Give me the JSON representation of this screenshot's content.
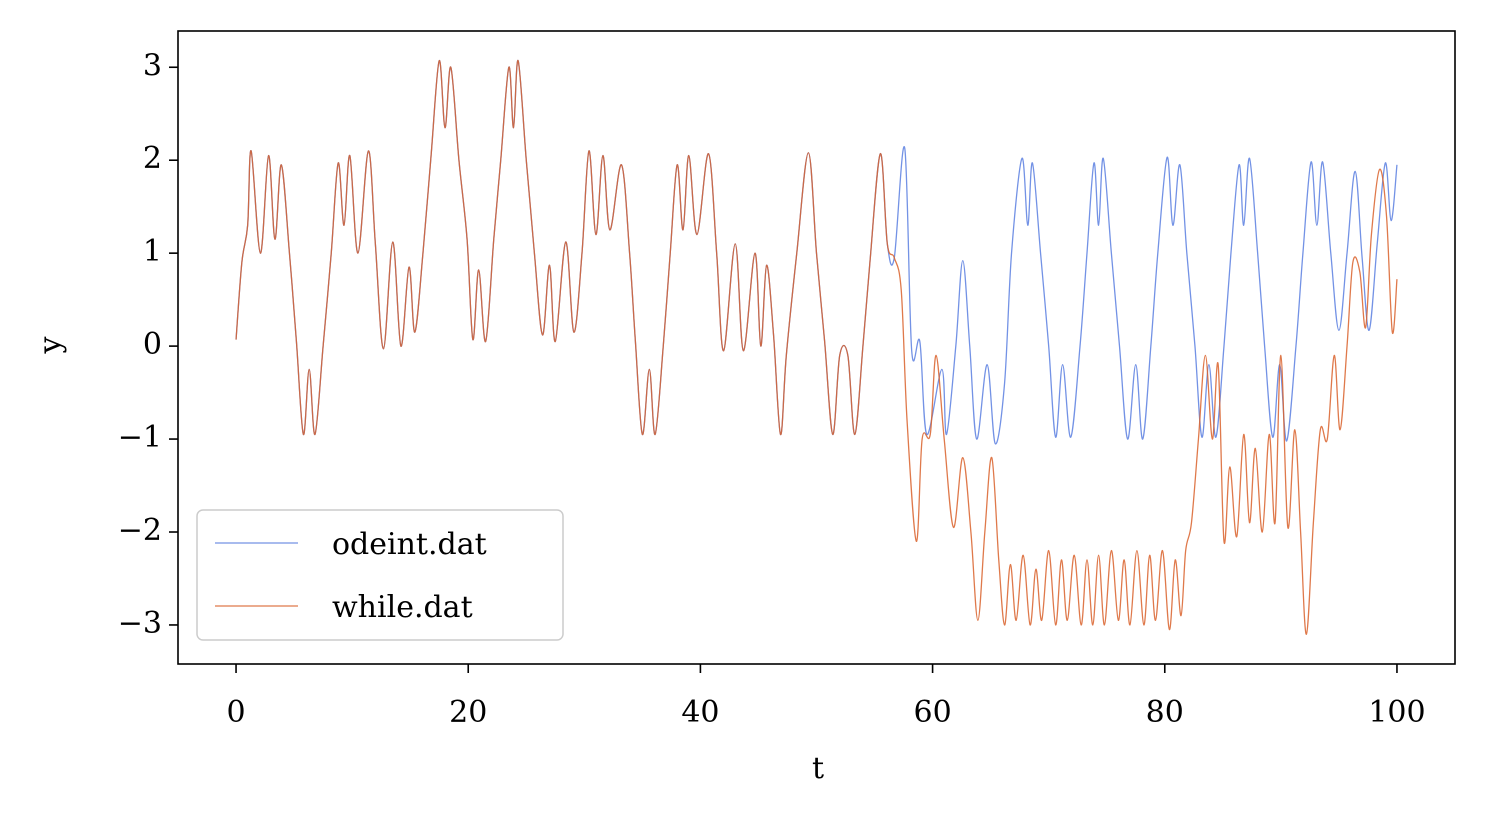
{
  "chart_data": {
    "type": "line",
    "xlabel": "t",
    "ylabel": "y",
    "xlim": [
      -5,
      105
    ],
    "ylim": [
      -3.42,
      3.39
    ],
    "xticks": [
      0,
      20,
      40,
      60,
      80,
      100
    ],
    "yticks": [
      {
        "value": -3,
        "label": "−3"
      },
      {
        "value": -2,
        "label": "−2"
      },
      {
        "value": -1,
        "label": "−1"
      },
      0,
      1,
      2,
      3
    ],
    "legend": "lower left",
    "series": [
      {
        "name": "odeint.dat",
        "color": "#5b7fe0",
        "x": [
          0,
          0.5,
          1.0,
          1.3,
          2.1,
          2.8,
          3.35,
          3.9,
          4.6,
          5.2,
          5.8,
          6.3,
          6.8,
          7.5,
          8.2,
          8.8,
          9.3,
          9.8,
          10.5,
          11.4,
          12.0,
          12.7,
          13.5,
          14.2,
          14.9,
          15.4,
          16.1,
          16.8,
          17.5,
          18.0,
          18.5,
          19.2,
          19.9,
          20.4,
          20.9,
          21.5,
          22.2,
          22.8,
          23.5,
          23.9,
          24.3,
          25.0,
          25.7,
          26.4,
          27.0,
          27.5,
          28.4,
          29.1,
          29.8,
          30.4,
          31.0,
          31.6,
          32.2,
          33.2,
          33.9,
          34.4,
          35.0,
          35.6,
          36.1,
          36.8,
          37.4,
          38.0,
          38.5,
          39.0,
          39.7,
          40.7,
          41.4,
          42.0,
          43.0,
          43.7,
          44.7,
          45.2,
          45.7,
          46.3,
          46.9,
          47.4,
          48.3,
          49.3,
          50.0,
          50.7,
          51.4,
          52.0,
          52.7,
          53.3,
          54.0,
          54.6,
          55.5,
          56.1,
          56.7,
          57.6,
          58.2,
          58.9,
          59.5,
          60.8,
          61.2,
          62.0,
          62.6,
          63.2,
          63.8,
          64.7,
          65.4,
          66.2,
          66.8,
          67.7,
          68.2,
          68.6,
          69.3,
          70.0,
          70.6,
          71.2,
          71.9,
          72.7,
          73.3,
          73.9,
          74.3,
          74.7,
          75.4,
          76.1,
          76.8,
          77.5,
          78.1,
          78.8,
          79.4,
          80.2,
          80.7,
          81.3,
          81.9,
          82.6,
          83.2,
          83.8,
          84.4,
          85.1,
          85.7,
          86.4,
          86.8,
          87.3,
          88.0,
          88.6,
          89.3,
          89.9,
          90.5,
          91.3,
          91.9,
          92.6,
          93.1,
          93.6,
          94.3,
          95.0,
          95.7,
          96.4,
          97.0,
          97.6,
          98.3,
          99.0,
          99.5,
          100
        ],
        "values": [
          0.07,
          0.9,
          1.3,
          2.1,
          1.0,
          2.05,
          1.15,
          1.95,
          1.0,
          0.05,
          -0.95,
          -0.25,
          -0.95,
          0.0,
          1.0,
          1.97,
          1.3,
          2.05,
          1.0,
          2.1,
          1.1,
          -0.03,
          1.12,
          0.0,
          0.85,
          0.15,
          1.0,
          2.05,
          3.07,
          2.35,
          3.0,
          2.0,
          1.15,
          0.07,
          0.82,
          0.05,
          1.15,
          2.0,
          3.0,
          2.35,
          3.07,
          2.0,
          1.0,
          0.12,
          0.87,
          0.05,
          1.12,
          0.15,
          1.0,
          2.1,
          1.2,
          2.05,
          1.25,
          1.95,
          1.0,
          0.05,
          -0.95,
          -0.25,
          -0.95,
          0.0,
          1.0,
          1.95,
          1.25,
          2.05,
          1.2,
          2.07,
          1.0,
          -0.05,
          1.1,
          -0.05,
          1.0,
          0.0,
          0.87,
          0.12,
          -0.95,
          -0.1,
          1.0,
          2.08,
          1.0,
          0.05,
          -0.95,
          -0.1,
          -0.1,
          -0.95,
          0.0,
          0.9,
          2.07,
          1.1,
          0.95,
          2.13,
          -0.05,
          0.05,
          -0.95,
          -0.25,
          -0.95,
          0.0,
          0.92,
          0.0,
          -1.0,
          -0.2,
          -1.05,
          -0.4,
          1.0,
          2.02,
          1.3,
          1.97,
          1.0,
          0.0,
          -0.98,
          -0.2,
          -0.98,
          0.0,
          1.0,
          1.97,
          1.3,
          2.02,
          1.0,
          0.0,
          -1.0,
          -0.2,
          -1.0,
          0.0,
          1.0,
          2.03,
          1.3,
          1.95,
          1.0,
          0.0,
          -0.98,
          -0.2,
          -0.98,
          0.0,
          1.0,
          1.95,
          1.3,
          2.02,
          1.0,
          0.0,
          -0.98,
          -0.2,
          -1.02,
          0.0,
          1.0,
          1.98,
          1.3,
          1.98,
          1.0,
          0.17,
          1.0,
          1.88,
          0.95,
          0.17,
          1.1,
          1.97,
          1.35,
          1.95
        ]
      },
      {
        "name": "while.dat",
        "color": "#d9622b",
        "x": [
          0,
          0.5,
          1.0,
          1.3,
          2.1,
          2.8,
          3.35,
          3.9,
          4.6,
          5.2,
          5.8,
          6.3,
          6.8,
          7.5,
          8.2,
          8.8,
          9.3,
          9.8,
          10.5,
          11.4,
          12.0,
          12.7,
          13.5,
          14.2,
          14.9,
          15.4,
          16.1,
          16.8,
          17.5,
          18.0,
          18.5,
          19.2,
          19.9,
          20.4,
          20.9,
          21.5,
          22.2,
          22.8,
          23.5,
          23.9,
          24.3,
          25.0,
          25.7,
          26.4,
          27.0,
          27.5,
          28.4,
          29.1,
          29.8,
          30.4,
          31.0,
          31.6,
          32.2,
          33.2,
          33.9,
          34.4,
          35.0,
          35.6,
          36.1,
          36.8,
          37.4,
          38.0,
          38.5,
          39.0,
          39.7,
          40.7,
          41.4,
          42.0,
          43.0,
          43.7,
          44.7,
          45.2,
          45.7,
          46.3,
          46.9,
          47.4,
          48.3,
          49.3,
          50.0,
          50.7,
          51.4,
          52.0,
          52.7,
          53.3,
          54.0,
          54.6,
          55.5,
          56.1,
          56.7,
          57.3,
          57.8,
          58.6,
          59.1,
          59.8,
          60.3,
          61.0,
          61.8,
          62.6,
          63.3,
          63.9,
          64.5,
          65.1,
          65.7,
          66.2,
          66.7,
          67.2,
          67.8,
          68.4,
          68.9,
          69.4,
          70.0,
          70.6,
          71.1,
          71.6,
          72.2,
          72.8,
          73.3,
          73.8,
          74.3,
          74.8,
          75.4,
          76.0,
          76.5,
          77.0,
          77.6,
          78.2,
          78.7,
          79.2,
          79.8,
          80.4,
          80.9,
          81.4,
          81.8,
          82.3,
          82.9,
          83.5,
          84.1,
          84.6,
          85.1,
          85.6,
          86.2,
          86.8,
          87.3,
          87.8,
          88.4,
          89.0,
          89.5,
          90.0,
          90.6,
          91.2,
          91.7,
          92.2,
          92.8,
          93.4,
          94.0,
          94.6,
          95.1,
          95.7,
          96.2,
          96.8,
          97.3,
          97.8,
          98.5,
          99.1,
          99.6,
          100
        ],
        "values": [
          0.07,
          0.9,
          1.3,
          2.1,
          1.0,
          2.05,
          1.15,
          1.95,
          1.0,
          0.05,
          -0.95,
          -0.25,
          -0.95,
          0.0,
          1.0,
          1.97,
          1.3,
          2.05,
          1.0,
          2.1,
          1.1,
          -0.03,
          1.12,
          0.0,
          0.85,
          0.15,
          1.0,
          2.05,
          3.07,
          2.35,
          3.0,
          2.0,
          1.15,
          0.07,
          0.82,
          0.05,
          1.15,
          2.0,
          3.0,
          2.35,
          3.07,
          2.0,
          1.0,
          0.12,
          0.87,
          0.05,
          1.12,
          0.15,
          1.0,
          2.1,
          1.2,
          2.05,
          1.25,
          1.95,
          1.0,
          0.05,
          -0.95,
          -0.25,
          -0.95,
          0.0,
          1.0,
          1.95,
          1.25,
          2.05,
          1.2,
          2.07,
          1.0,
          -0.05,
          1.1,
          -0.05,
          1.0,
          0.0,
          0.87,
          0.12,
          -0.95,
          -0.1,
          1.0,
          2.08,
          1.0,
          0.05,
          -0.95,
          -0.1,
          -0.1,
          -0.95,
          0.0,
          0.9,
          2.07,
          1.1,
          0.95,
          0.6,
          -0.8,
          -2.1,
          -1.0,
          -0.95,
          -0.1,
          -1.0,
          -1.95,
          -1.2,
          -2.0,
          -2.95,
          -2.0,
          -1.2,
          -2.3,
          -3.0,
          -2.35,
          -2.95,
          -2.25,
          -3.0,
          -2.4,
          -2.95,
          -2.2,
          -3.0,
          -2.3,
          -2.95,
          -2.25,
          -3.0,
          -2.3,
          -3.0,
          -2.25,
          -3.0,
          -2.2,
          -2.95,
          -2.3,
          -3.0,
          -2.2,
          -3.0,
          -2.25,
          -2.95,
          -2.2,
          -3.05,
          -2.3,
          -2.9,
          -2.2,
          -1.9,
          -1.0,
          -0.1,
          -1.0,
          -0.2,
          -2.1,
          -1.3,
          -2.05,
          -0.95,
          -1.9,
          -1.1,
          -2.0,
          -0.95,
          -1.9,
          -0.1,
          -1.95,
          -0.9,
          -2.0,
          -3.1,
          -1.9,
          -0.9,
          -1.0,
          -0.1,
          -0.9,
          0.0,
          0.9,
          0.8,
          0.2,
          1.2,
          1.9,
          1.4,
          0.15,
          0.72
        ]
      }
    ]
  }
}
